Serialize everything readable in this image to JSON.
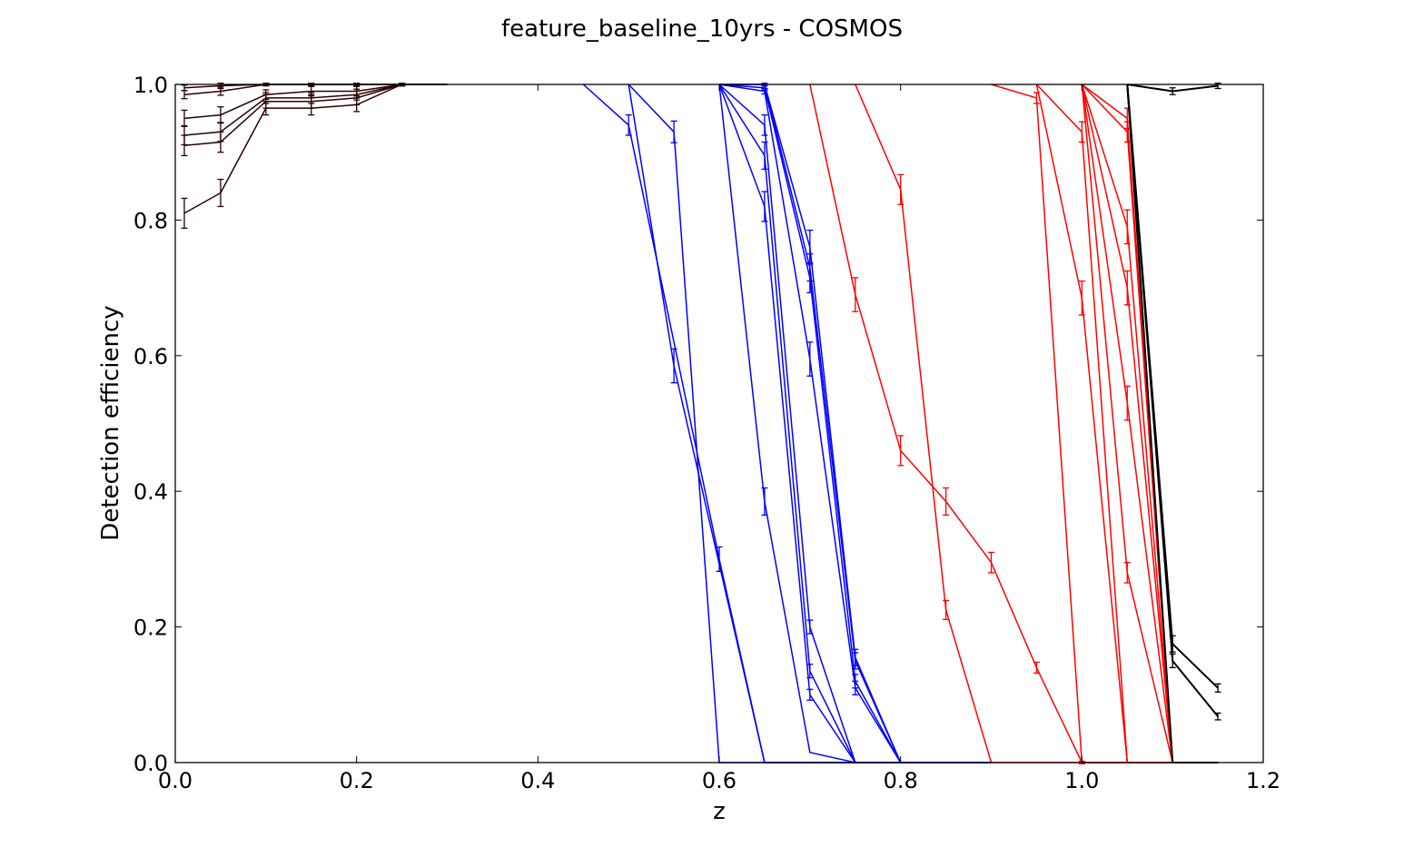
{
  "chart_data": {
    "type": "line",
    "title": "feature_baseline_10yrs - COSMOS",
    "xlabel": "z",
    "ylabel": "Detection efficiency",
    "xlim": [
      0.0,
      1.2
    ],
    "ylim": [
      0.0,
      1.0
    ],
    "xticks": [
      "0.0",
      "0.2",
      "0.4",
      "0.6",
      "0.8",
      "1.0",
      "1.2"
    ],
    "yticks": [
      "0.0",
      "0.2",
      "0.4",
      "0.6",
      "0.8",
      "1.0"
    ],
    "grid": false,
    "colors": {
      "black_group": "#2a0000",
      "blue_group": "#0000ff",
      "red_group": "#ff0000",
      "late_group": "#000000"
    },
    "series": [
      {
        "group": "black",
        "x": [
          0.01,
          0.05,
          0.1,
          0.15,
          0.2,
          0.25,
          0.3
        ],
        "y": [
          0.81,
          0.84,
          0.965,
          0.965,
          0.97,
          1.0,
          1.0
        ],
        "err": [
          0.022,
          0.02,
          0.01,
          0.01,
          0.01,
          0.002,
          0
        ]
      },
      {
        "group": "black",
        "x": [
          0.01,
          0.05,
          0.1,
          0.15,
          0.2,
          0.25,
          0.3
        ],
        "y": [
          0.91,
          0.915,
          0.975,
          0.975,
          0.98,
          1.0,
          1.0
        ],
        "err": [
          0.015,
          0.015,
          0.01,
          0.01,
          0.01,
          0.002,
          0
        ]
      },
      {
        "group": "black",
        "x": [
          0.01,
          0.05,
          0.1,
          0.15,
          0.2,
          0.25,
          0.3
        ],
        "y": [
          0.925,
          0.93,
          0.98,
          0.98,
          0.985,
          1.0,
          1.0
        ],
        "err": [
          0.014,
          0.014,
          0.008,
          0.008,
          0.008,
          0.002,
          0
        ]
      },
      {
        "group": "black",
        "x": [
          0.01,
          0.05,
          0.1,
          0.15,
          0.2,
          0.25,
          0.3
        ],
        "y": [
          0.95,
          0.955,
          0.985,
          0.99,
          0.99,
          1.0,
          1.0
        ],
        "err": [
          0.012,
          0.012,
          0.007,
          0.007,
          0.007,
          0.002,
          0
        ]
      },
      {
        "group": "black",
        "x": [
          0.01,
          0.05,
          0.1,
          0.15,
          0.2,
          0.25,
          0.3
        ],
        "y": [
          0.985,
          0.99,
          1.0,
          1.0,
          1.0,
          1.0,
          1.0
        ],
        "err": [
          0.006,
          0.006,
          0.002,
          0.002,
          0.002,
          0.002,
          0
        ]
      },
      {
        "group": "black",
        "x": [
          0.01,
          0.05,
          0.1,
          0.15,
          0.2,
          0.25,
          0.3
        ],
        "y": [
          0.995,
          0.998,
          1.0,
          1.0,
          1.0,
          1.0,
          1.0
        ],
        "err": [
          0.004,
          0.004,
          0.002,
          0.002,
          0.002,
          0.002,
          0
        ]
      },
      {
        "group": "blue",
        "x": [
          0.45,
          0.5,
          0.6,
          0.65,
          0.7,
          0.75,
          0.8,
          0.9
        ],
        "y": [
          1.0,
          0.94,
          0.3,
          0.0,
          0.0,
          0.0,
          0.0,
          0.0
        ],
        "err": [
          0,
          0.015,
          0.018,
          0,
          0,
          0,
          0,
          0
        ]
      },
      {
        "group": "blue",
        "x": [
          0.5,
          0.55,
          0.6,
          0.65,
          0.7,
          0.75,
          0.8,
          0.9
        ],
        "y": [
          1.0,
          0.93,
          0.0,
          0.0,
          0.0,
          0.0,
          0.0,
          0.0
        ],
        "err": [
          0,
          0.016,
          0,
          0,
          0,
          0,
          0,
          0
        ]
      },
      {
        "group": "blue",
        "x": [
          0.5,
          0.55,
          0.65,
          0.7,
          0.75,
          0.8,
          0.9
        ],
        "y": [
          1.0,
          0.585,
          0.0,
          0.0,
          0.0,
          0.0,
          0.0
        ],
        "err": [
          0,
          0.025,
          0,
          0,
          0,
          0,
          0
        ]
      },
      {
        "group": "blue",
        "x": [
          0.6,
          0.65,
          0.7,
          0.75,
          0.8,
          0.9
        ],
        "y": [
          1.0,
          0.385,
          0.015,
          0.0,
          0.0,
          0.0
        ],
        "err": [
          0,
          0.02,
          0,
          0,
          0,
          0
        ]
      },
      {
        "group": "blue",
        "x": [
          0.6,
          0.65,
          0.7,
          0.75,
          0.8,
          0.9
        ],
        "y": [
          1.0,
          0.82,
          0.1,
          0.0,
          0.0,
          0.0
        ],
        "err": [
          0,
          0.022,
          0.008,
          0,
          0,
          0
        ]
      },
      {
        "group": "blue",
        "x": [
          0.6,
          0.65,
          0.7,
          0.75,
          0.8,
          0.9
        ],
        "y": [
          1.0,
          0.895,
          0.135,
          0.0,
          0.0,
          0.0
        ],
        "err": [
          0,
          0.02,
          0.01,
          0,
          0,
          0
        ]
      },
      {
        "group": "blue",
        "x": [
          0.6,
          0.65,
          0.7,
          0.75,
          0.8,
          0.9
        ],
        "y": [
          1.0,
          0.94,
          0.2,
          0.0,
          0.0,
          0.0
        ],
        "err": [
          0,
          0.015,
          0.01,
          0,
          0,
          0
        ]
      },
      {
        "group": "blue",
        "x": [
          0.6,
          0.65,
          0.7,
          0.75,
          0.8,
          0.9
        ],
        "y": [
          1.0,
          0.99,
          0.595,
          0.11,
          0.0,
          0.0
        ],
        "err": [
          0,
          0.004,
          0.025,
          0.01,
          0,
          0
        ]
      },
      {
        "group": "blue",
        "x": [
          0.6,
          0.65,
          0.7,
          0.75,
          0.8,
          0.9
        ],
        "y": [
          1.0,
          0.995,
          0.715,
          0.12,
          0.0,
          0.0
        ],
        "err": [
          0,
          0.003,
          0.022,
          0.01,
          0,
          0
        ]
      },
      {
        "group": "blue",
        "x": [
          0.6,
          0.65,
          0.7,
          0.75,
          0.8,
          0.9
        ],
        "y": [
          1.0,
          1.0,
          0.73,
          0.15,
          0.0,
          0.0
        ],
        "err": [
          0,
          0.002,
          0.02,
          0.012,
          0,
          0
        ]
      },
      {
        "group": "blue",
        "x": [
          0.6,
          0.65,
          0.7,
          0.75,
          0.8,
          0.9
        ],
        "y": [
          1.0,
          1.0,
          0.76,
          0.155,
          0.0,
          0.0
        ],
        "err": [
          0,
          0.002,
          0.025,
          0.012,
          0,
          0
        ]
      },
      {
        "group": "red",
        "x": [
          0.7,
          0.75,
          0.8,
          0.85,
          0.9,
          0.95,
          1.0,
          1.05,
          1.1,
          1.15
        ],
        "y": [
          1.0,
          0.69,
          0.46,
          0.385,
          0.295,
          0.14,
          0.0,
          0.0,
          0.0,
          0.0
        ],
        "err": [
          0,
          0.025,
          0.022,
          0.02,
          0.015,
          0.008,
          0,
          0,
          0,
          0
        ]
      },
      {
        "group": "red",
        "x": [
          0.75,
          0.8,
          0.85,
          0.9,
          0.95,
          1.0,
          1.05,
          1.1,
          1.15
        ],
        "y": [
          1.0,
          0.845,
          0.225,
          0.0,
          0.0,
          0.0,
          0.0,
          0.0,
          0.0
        ],
        "err": [
          0,
          0.022,
          0.014,
          0,
          0,
          0,
          0,
          0,
          0
        ]
      },
      {
        "group": "red",
        "x": [
          0.9,
          0.95,
          1.0,
          1.05,
          1.1,
          1.15
        ],
        "y": [
          1.0,
          0.98,
          0.0,
          0.0,
          0.0,
          0.0
        ],
        "err": [
          0,
          0.008,
          0.002,
          0,
          0,
          0
        ]
      },
      {
        "group": "red",
        "x": [
          0.95,
          1.0,
          1.05,
          1.1,
          1.15
        ],
        "y": [
          1.0,
          0.685,
          0.0,
          0.0,
          0.0
        ],
        "err": [
          0,
          0.025,
          0,
          0,
          0
        ]
      },
      {
        "group": "red",
        "x": [
          1.0,
          1.05,
          1.1,
          1.15
        ],
        "y": [
          1.0,
          0.28,
          0.0,
          0.0
        ],
        "err": [
          0,
          0.015,
          0,
          0
        ]
      },
      {
        "group": "red",
        "x": [
          1.0,
          1.05,
          1.1,
          1.15
        ],
        "y": [
          1.0,
          0.53,
          0.0,
          0.0
        ],
        "err": [
          0,
          0.025,
          0,
          0
        ]
      },
      {
        "group": "red",
        "x": [
          1.0,
          1.05,
          1.1,
          1.15
        ],
        "y": [
          1.0,
          0.7,
          0.0,
          0.0
        ],
        "err": [
          0,
          0.025,
          0,
          0
        ]
      },
      {
        "group": "red",
        "x": [
          1.0,
          1.05,
          1.1,
          1.15
        ],
        "y": [
          1.0,
          0.79,
          0.0,
          0.0
        ],
        "err": [
          0,
          0.025,
          0,
          0
        ]
      },
      {
        "group": "red",
        "x": [
          1.0,
          1.05,
          1.1,
          1.15
        ],
        "y": [
          1.0,
          0.93,
          0.0,
          0.0
        ],
        "err": [
          0,
          0.015,
          0,
          0
        ]
      },
      {
        "group": "red",
        "x": [
          0.95,
          1.0,
          1.05,
          1.1,
          1.15
        ],
        "y": [
          1.0,
          0.93,
          0.0,
          0.0,
          0.0
        ],
        "err": [
          0,
          0.015,
          0,
          0,
          0
        ]
      },
      {
        "group": "red",
        "x": [
          1.0,
          1.05,
          1.1,
          1.15
        ],
        "y": [
          1.0,
          0.95,
          0.0,
          0.0
        ],
        "err": [
          0,
          0.015,
          0,
          0
        ]
      },
      {
        "group": "late",
        "x": [
          1.05,
          1.1,
          1.15
        ],
        "y": [
          1.0,
          0.99,
          0.998
        ],
        "err": [
          0,
          0.005,
          0.004
        ]
      },
      {
        "group": "late",
        "x": [
          1.05,
          1.1,
          1.15
        ],
        "y": [
          1.0,
          0.175,
          0.11
        ],
        "err": [
          0,
          0.012,
          0.006
        ]
      },
      {
        "group": "late",
        "x": [
          1.05,
          1.1,
          1.15
        ],
        "y": [
          1.0,
          0.15,
          0.068
        ],
        "err": [
          0,
          0.01,
          0.005
        ]
      },
      {
        "group": "late",
        "x": [
          1.05,
          1.1,
          1.15
        ],
        "y": [
          1.0,
          0.0,
          0.0
        ],
        "err": [
          0,
          0,
          0
        ]
      }
    ]
  }
}
